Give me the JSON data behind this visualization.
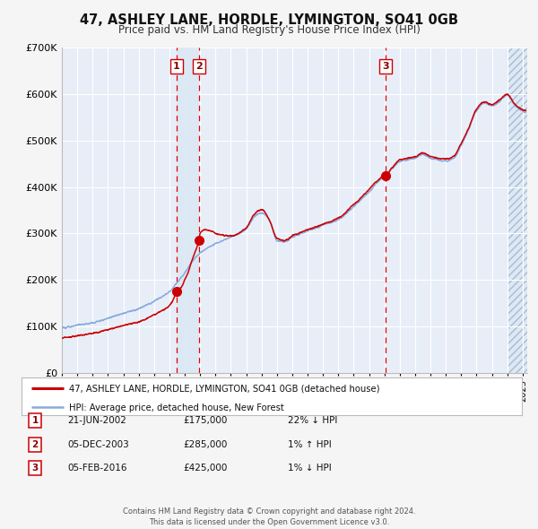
{
  "title": "47, ASHLEY LANE, HORDLE, LYMINGTON, SO41 0GB",
  "subtitle": "Price paid vs. HM Land Registry's House Price Index (HPI)",
  "fig_bg_color": "#f5f5f5",
  "plot_bg_color": "#e8eef8",
  "grid_color": "#ffffff",
  "red_line_color": "#cc0000",
  "blue_line_color": "#88aadd",
  "sale_marker_color": "#cc0000",
  "dashed_line_color": "#dd0000",
  "highlight_fill": "#dce8f5",
  "ylim": [
    0,
    700000
  ],
  "yticks": [
    0,
    100000,
    200000,
    300000,
    400000,
    500000,
    600000,
    700000
  ],
  "ytick_labels": [
    "£0",
    "£100K",
    "£200K",
    "£300K",
    "£400K",
    "£500K",
    "£600K",
    "£700K"
  ],
  "xlim_start": 1995.0,
  "xlim_end": 2025.3,
  "hatch_start": 2024.08,
  "sale1": {
    "year": 2002.47,
    "price": 175000,
    "label": "1",
    "date": "21-JUN-2002"
  },
  "sale2": {
    "year": 2003.92,
    "price": 285000,
    "label": "2",
    "date": "05-DEC-2003"
  },
  "sale3": {
    "year": 2016.09,
    "price": 425000,
    "label": "3",
    "date": "05-FEB-2016"
  },
  "legend_entry1": "47, ASHLEY LANE, HORDLE, LYMINGTON, SO41 0GB (detached house)",
  "legend_entry2": "HPI: Average price, detached house, New Forest",
  "footer": "Contains HM Land Registry data © Crown copyright and database right 2024.\nThis data is licensed under the Open Government Licence v3.0.",
  "table_rows": [
    {
      "num": "1",
      "date": "21-JUN-2002",
      "price": "£175,000",
      "hpi": "22% ↓ HPI"
    },
    {
      "num": "2",
      "date": "05-DEC-2003",
      "price": "£285,000",
      "hpi": "1% ↑ HPI"
    },
    {
      "num": "3",
      "date": "05-FEB-2016",
      "price": "£425,000",
      "hpi": "1% ↓ HPI"
    }
  ],
  "hpi_key_years": [
    1995,
    1995.5,
    1996,
    1997,
    1998,
    1999,
    2000,
    2001,
    2002,
    2002.5,
    2003,
    2003.5,
    2004,
    2005,
    2006,
    2007,
    2007.5,
    2008,
    2008.5,
    2009,
    2009.5,
    2010,
    2011,
    2012,
    2013,
    2014,
    2015,
    2015.5,
    2016,
    2016.5,
    2017,
    2018,
    2018.5,
    2019,
    2020,
    2020.5,
    2021,
    2021.5,
    2022,
    2022.5,
    2023,
    2023.5,
    2024,
    2024.5,
    2025
  ],
  "hpi_key_vals": [
    97000,
    99000,
    103000,
    108000,
    118000,
    128000,
    138000,
    155000,
    175000,
    195000,
    215000,
    240000,
    258000,
    278000,
    292000,
    310000,
    335000,
    345000,
    330000,
    285000,
    282000,
    292000,
    305000,
    318000,
    330000,
    358000,
    390000,
    408000,
    425000,
    440000,
    455000,
    462000,
    470000,
    462000,
    456000,
    462000,
    490000,
    525000,
    565000,
    580000,
    575000,
    585000,
    597000,
    575000,
    563000
  ],
  "prop_key_years": [
    1995,
    1995.5,
    1996,
    1997,
    1998,
    1999,
    2000,
    2001,
    2002,
    2002.47,
    2002.5,
    2002.8,
    2003,
    2003.2,
    2003.5,
    2003.92,
    2004,
    2004.3,
    2004.8,
    2005,
    2006,
    2007,
    2007.5,
    2008,
    2008.5,
    2009,
    2009.5,
    2010,
    2011,
    2012,
    2013,
    2014,
    2015,
    2015.5,
    2016,
    2016.09,
    2016.5,
    2017,
    2018,
    2018.5,
    2019,
    2020,
    2020.5,
    2021,
    2021.5,
    2022,
    2022.5,
    2023,
    2023.5,
    2024,
    2024.5,
    2025
  ],
  "prop_key_vals": [
    75000,
    77000,
    80000,
    85000,
    93000,
    102000,
    110000,
    125000,
    145000,
    175000,
    178000,
    185000,
    200000,
    215000,
    245000,
    285000,
    300000,
    308000,
    305000,
    300000,
    295000,
    312000,
    340000,
    352000,
    330000,
    290000,
    285000,
    295000,
    308000,
    320000,
    333000,
    362000,
    395000,
    412000,
    425000,
    425000,
    442000,
    458000,
    465000,
    474000,
    466000,
    460000,
    466000,
    494000,
    528000,
    568000,
    583000,
    578000,
    588000,
    600000,
    578000,
    566000
  ]
}
